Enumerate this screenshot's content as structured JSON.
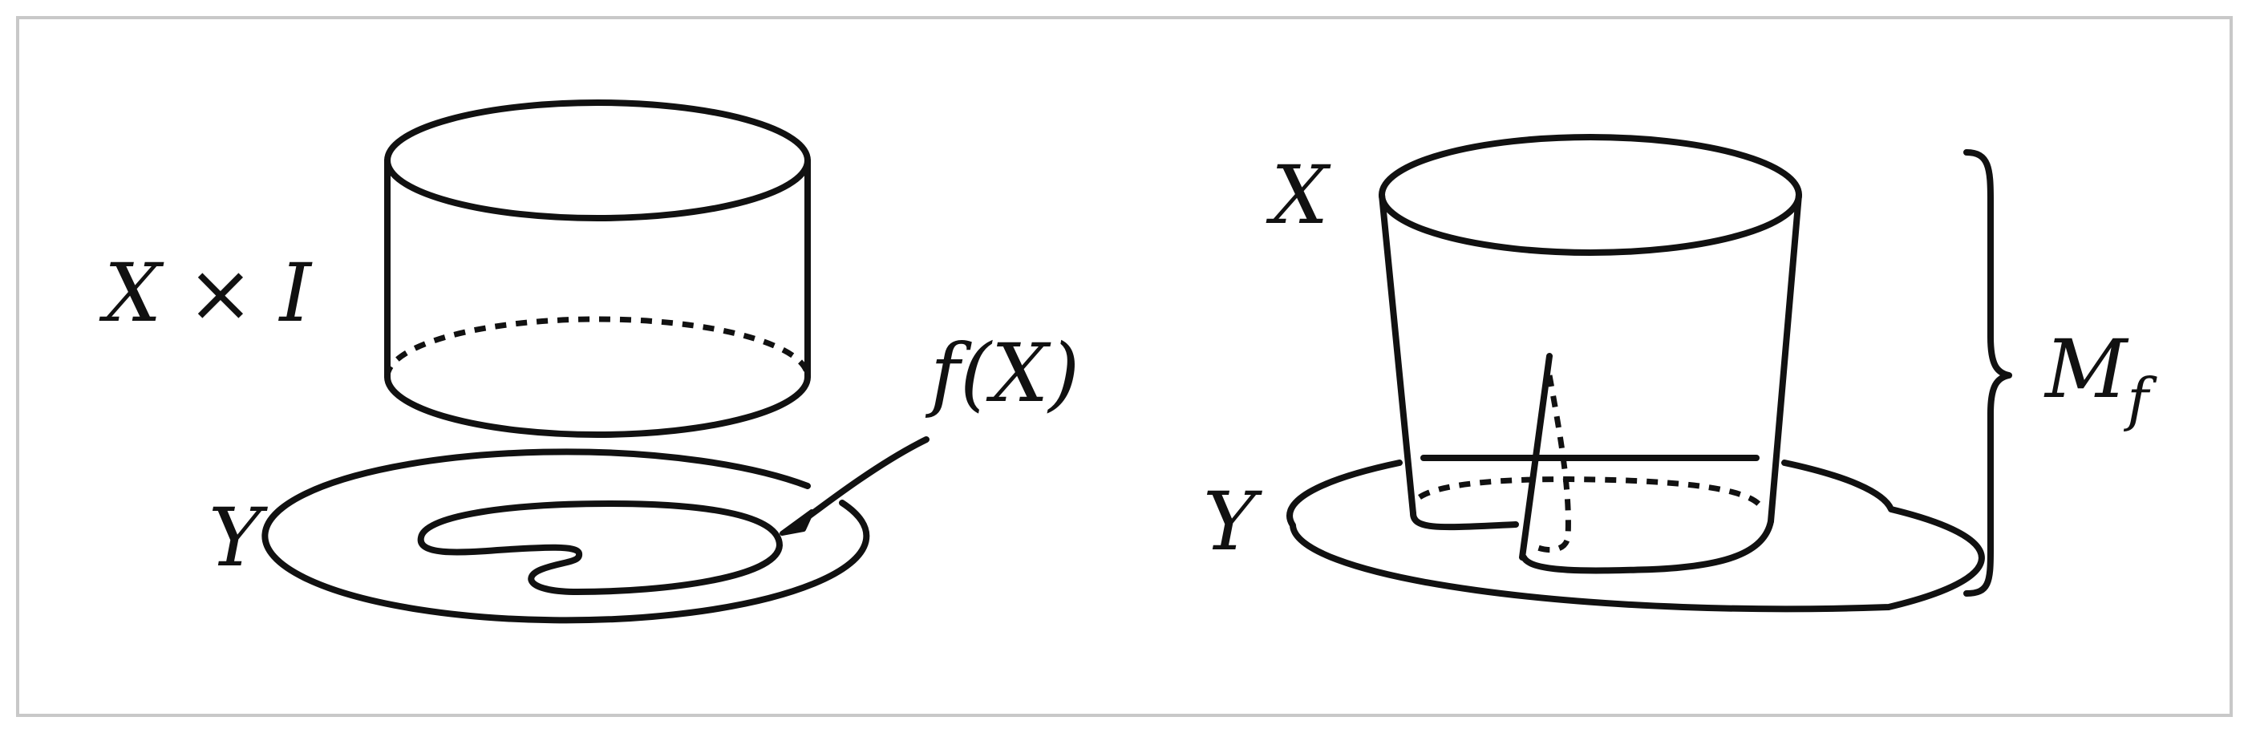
{
  "labels": {
    "product": "X × I",
    "base_left": "Y",
    "image": "f(X)",
    "top_right": "X",
    "base_right": "Y",
    "mapping_cylinder_main": "M",
    "mapping_cylinder_sub": "f"
  },
  "colors": {
    "ink": "#111111",
    "frame": "#c8c8c8",
    "background": "#ffffff"
  }
}
